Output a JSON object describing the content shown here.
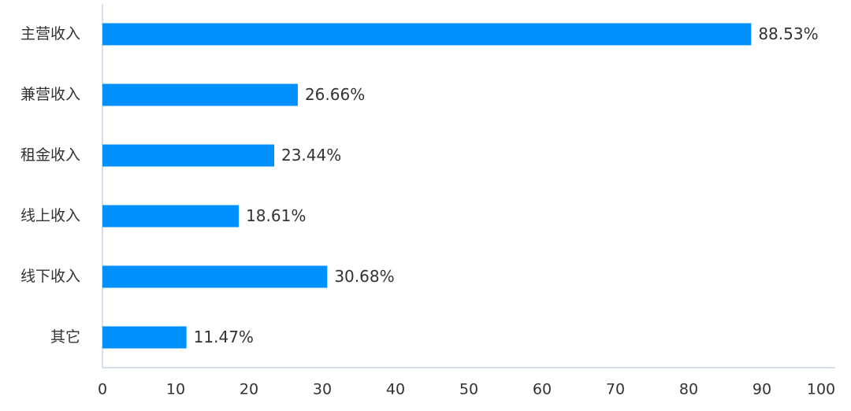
{
  "chart_data": {
    "type": "hbar",
    "categories": [
      "主营收入",
      "兼营收入",
      "租金收入",
      "线上收入",
      "线下收入",
      "其它"
    ],
    "values": [
      88.53,
      26.66,
      23.44,
      18.61,
      30.68,
      11.47
    ],
    "value_labels": [
      "88.53%",
      "26.66%",
      "23.44%",
      "18.61%",
      "30.68%",
      "11.47%"
    ],
    "color": "#0091ff",
    "xlim": [
      0,
      100
    ],
    "xticks": [
      0,
      10,
      20,
      30,
      40,
      50,
      60,
      70,
      80,
      90,
      100
    ],
    "grid": false
  }
}
